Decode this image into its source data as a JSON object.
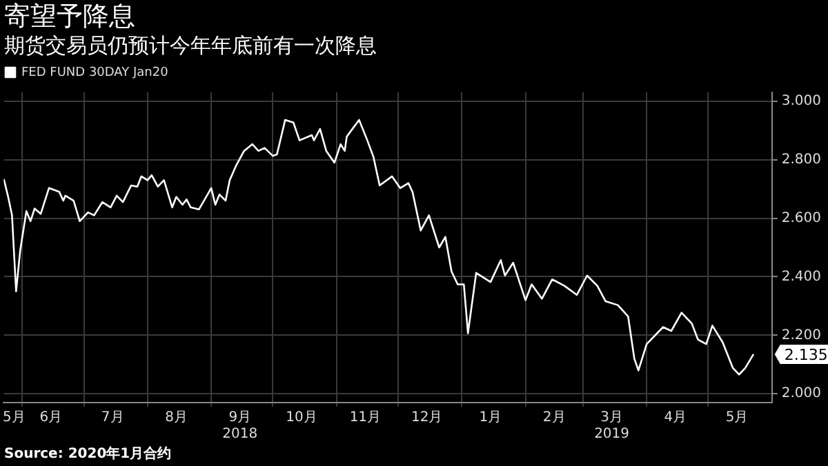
{
  "chart_data": {
    "type": "line",
    "title": "寄望予降息",
    "subtitle": "期货交易员仍预计今年年底前有一次降息",
    "annotations": [
      "Source: 2020年1月合约",
      {
        "text": "2.135",
        "x": "2019-05-23",
        "y": 2.135
      }
    ],
    "legend": "top left",
    "grid": true,
    "marker": "none",
    "line_style": "solid",
    "xlim": [
      "2018-05-23",
      "2019-06-01"
    ],
    "xticks": [
      {
        "value": "2018-05-28",
        "label": "5月"
      },
      {
        "value": "2018-06-01",
        "label": null
      },
      {
        "value": "2018-06-15",
        "label": "6月"
      },
      {
        "value": "2018-07-01",
        "label": null
      },
      {
        "value": "2018-07-15",
        "label": "7月"
      },
      {
        "value": "2018-08-01",
        "label": null
      },
      {
        "value": "2018-08-15",
        "label": "8月"
      },
      {
        "value": "2018-09-01",
        "label": null
      },
      {
        "value": "2018-09-15",
        "label": "9月\n2018"
      },
      {
        "value": "2018-10-01",
        "label": null
      },
      {
        "value": "2018-10-15",
        "label": "10月"
      },
      {
        "value": "2018-11-01",
        "label": null
      },
      {
        "value": "2018-11-15",
        "label": "11月"
      },
      {
        "value": "2018-12-01",
        "label": null
      },
      {
        "value": "2018-12-15",
        "label": "12月"
      },
      {
        "value": "2019-01-01",
        "label": null
      },
      {
        "value": "2019-01-15",
        "label": "1月"
      },
      {
        "value": "2019-02-01",
        "label": null
      },
      {
        "value": "2019-02-15",
        "label": "2月"
      },
      {
        "value": "2019-03-01",
        "label": null
      },
      {
        "value": "2019-03-15",
        "label": "3月\n2019"
      },
      {
        "value": "2019-04-01",
        "label": null
      },
      {
        "value": "2019-04-15",
        "label": "4月"
      },
      {
        "value": "2019-05-01",
        "label": null
      },
      {
        "value": "2019-05-15",
        "label": "5月"
      }
    ],
    "ylim": [
      1.97,
      3.03
    ],
    "yticks": [
      {
        "value": 2,
        "label": "2.000"
      },
      {
        "value": 2.2,
        "label": "2.200"
      },
      {
        "value": 2.4,
        "label": "2.400"
      },
      {
        "value": 2.6,
        "label": "2.600"
      },
      {
        "value": 2.8,
        "label": "2.800"
      },
      {
        "value": 3,
        "label": "3.000"
      }
    ],
    "series": [
      {
        "name": "FED FUND 30DAY Jan20",
        "color": "#ffffff",
        "x": [
          "2018-05-23",
          "2018-05-25",
          "2018-05-27",
          "2018-05-29",
          "2018-05-31",
          "2018-06-03",
          "2018-06-05",
          "2018-06-07",
          "2018-06-10",
          "2018-06-14",
          "2018-06-19",
          "2018-06-21",
          "2018-06-22",
          "2018-06-26",
          "2018-06-29",
          "2018-07-03",
          "2018-07-06",
          "2018-07-10",
          "2018-07-14",
          "2018-07-17",
          "2018-07-20",
          "2018-07-24",
          "2018-07-27",
          "2018-07-29",
          "2018-08-01",
          "2018-08-03",
          "2018-08-06",
          "2018-08-09",
          "2018-08-13",
          "2018-08-15",
          "2018-08-18",
          "2018-08-20",
          "2018-08-22",
          "2018-08-26",
          "2018-09-01",
          "2018-09-03",
          "2018-09-05",
          "2018-09-08",
          "2018-09-10",
          "2018-09-13",
          "2018-09-17",
          "2018-09-21",
          "2018-09-24",
          "2018-09-27",
          "2018-10-01",
          "2018-10-03",
          "2018-10-07",
          "2018-10-11",
          "2018-10-14",
          "2018-10-20",
          "2018-10-21",
          "2018-10-24",
          "2018-10-27",
          "2018-10-31",
          "2018-11-03",
          "2018-11-05",
          "2018-11-06",
          "2018-11-12",
          "2018-11-16",
          "2018-11-19",
          "2018-11-22",
          "2018-11-28",
          "2018-12-02",
          "2018-12-06",
          "2018-12-08",
          "2018-12-12",
          "2018-12-16",
          "2018-12-21",
          "2018-12-24",
          "2018-12-27",
          "2018-12-30",
          "2019-01-02",
          "2019-01-04",
          "2019-01-08",
          "2019-01-15",
          "2019-01-20",
          "2019-01-22",
          "2019-01-26",
          "2019-02-01",
          "2019-02-04",
          "2019-02-09",
          "2019-02-14",
          "2019-02-20",
          "2019-02-26",
          "2019-03-03",
          "2019-03-08",
          "2019-03-12",
          "2019-03-18",
          "2019-03-23",
          "2019-03-26",
          "2019-03-28",
          "2019-04-01",
          "2019-04-09",
          "2019-04-13",
          "2019-04-18",
          "2019-04-23",
          "2019-04-26",
          "2019-04-30",
          "2019-05-03",
          "2019-05-08",
          "2019-05-13",
          "2019-05-16",
          "2019-05-19",
          "2019-05-23"
        ],
        "values": [
          2.734,
          2.677,
          2.61,
          2.35,
          2.49,
          2.624,
          2.59,
          2.633,
          2.615,
          2.703,
          2.69,
          2.66,
          2.677,
          2.66,
          2.59,
          2.62,
          2.61,
          2.655,
          2.637,
          2.677,
          2.655,
          2.712,
          2.708,
          2.743,
          2.73,
          2.747,
          2.708,
          2.73,
          2.637,
          2.673,
          2.646,
          2.664,
          2.637,
          2.63,
          2.703,
          2.646,
          2.681,
          2.66,
          2.73,
          2.778,
          2.83,
          2.853,
          2.83,
          2.84,
          2.813,
          2.818,
          2.936,
          2.927,
          2.866,
          2.884,
          2.866,
          2.905,
          2.83,
          2.79,
          2.853,
          2.83,
          2.879,
          2.936,
          2.866,
          2.809,
          2.712,
          2.743,
          2.703,
          2.72,
          2.69,
          2.558,
          2.61,
          2.5,
          2.536,
          2.418,
          2.374,
          2.374,
          2.207,
          2.413,
          2.382,
          2.457,
          2.404,
          2.448,
          2.32,
          2.374,
          2.325,
          2.391,
          2.369,
          2.338,
          2.404,
          2.369,
          2.316,
          2.303,
          2.264,
          2.12,
          2.08,
          2.17,
          2.228,
          2.215,
          2.277,
          2.24,
          2.185,
          2.17,
          2.233,
          2.176,
          2.088,
          2.066,
          2.088,
          2.135
        ]
      }
    ]
  }
}
